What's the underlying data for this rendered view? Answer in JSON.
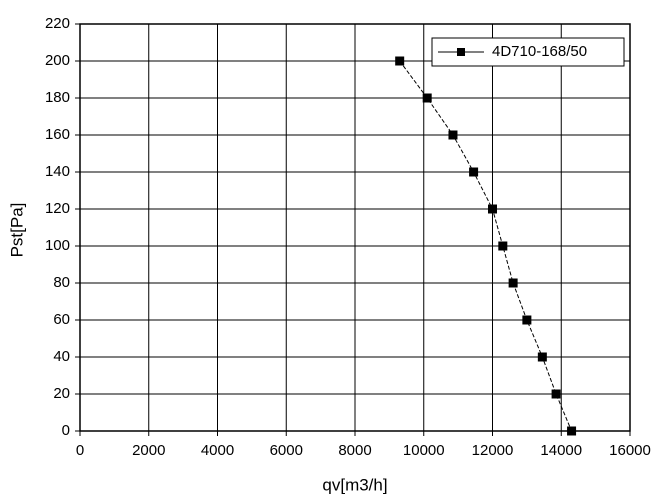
{
  "chart_data": {
    "type": "line",
    "x_label": "qv[m3/h]",
    "y_label": "Pst[Pa]",
    "x": [
      9300,
      10100,
      10850,
      11450,
      12000,
      12300,
      12600,
      13000,
      13450,
      13850,
      14300
    ],
    "series": [
      {
        "name": "4D710-168/50",
        "color": "#000000",
        "values": [
          200,
          180,
          160,
          140,
          120,
          100,
          80,
          60,
          40,
          20,
          0
        ]
      }
    ],
    "xlim": [
      0,
      16000
    ],
    "xticks": [
      0,
      2000,
      4000,
      6000,
      8000,
      10000,
      12000,
      14000,
      16000
    ],
    "ylim": [
      0,
      220
    ],
    "yticks": [
      0,
      20,
      40,
      60,
      80,
      100,
      120,
      140,
      160,
      180,
      200,
      220
    ],
    "grid": true,
    "legend": "top-right"
  }
}
